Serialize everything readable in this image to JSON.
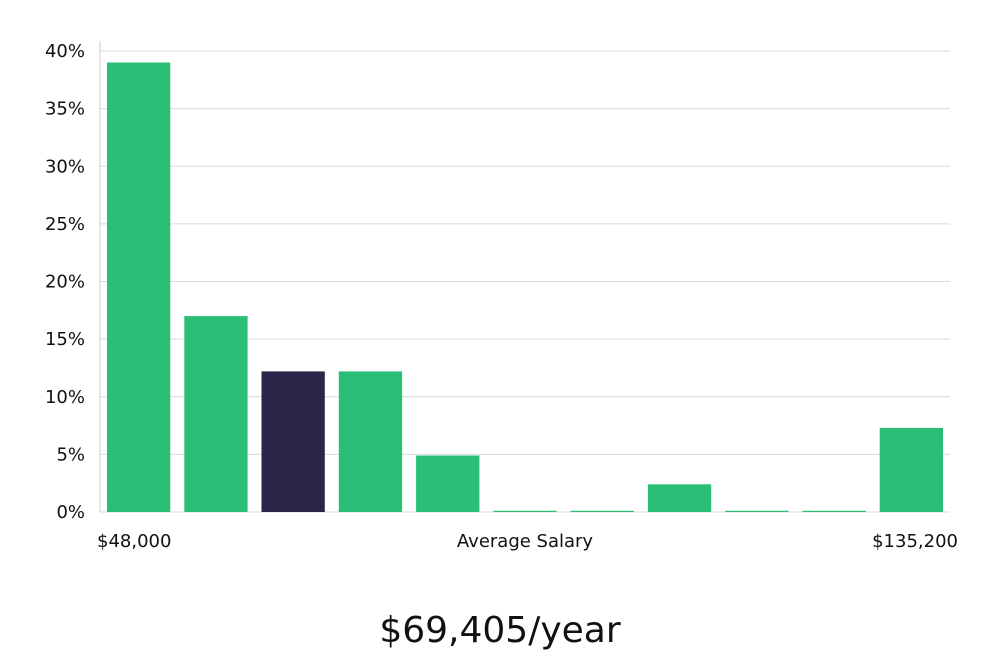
{
  "chart_data": {
    "type": "bar",
    "title": "",
    "xlabel": "Average Salary",
    "ylabel": "",
    "x_range_labels": {
      "min": "$48,000",
      "max": "$135,200"
    },
    "bins": 11,
    "values": [
      39.0,
      17.0,
      12.2,
      12.2,
      4.9,
      0.1,
      0.1,
      2.4,
      0.1,
      0.1,
      7.3
    ],
    "highlight_index": 2,
    "ylim": [
      0,
      40
    ],
    "yticks": [
      0,
      5,
      10,
      15,
      20,
      25,
      30,
      35,
      40
    ],
    "ytick_labels": [
      "0%",
      "5%",
      "10%",
      "15%",
      "20%",
      "25%",
      "30%",
      "35%",
      "40%"
    ],
    "grid": true,
    "colors": {
      "bar": "#29bf76",
      "highlight": "#29264a",
      "grid": "#d9d9d9",
      "axis": "#cccccc"
    }
  },
  "summary": {
    "average_salary_text": "$69,405/year"
  }
}
